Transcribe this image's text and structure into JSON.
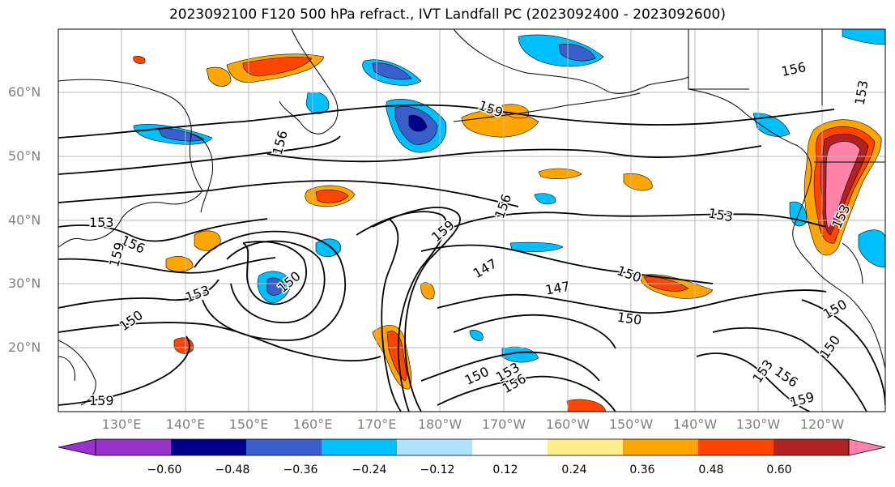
{
  "title": "2023092100 F120 500 hPa refract., IVT Landfall PC (2023092400 - 2023092600)",
  "lat_labels": [
    "60°N",
    "50°N",
    "40°N",
    "30°N",
    "20°N"
  ],
  "lon_labels": [
    "130°E",
    "140°E",
    "150°E",
    "160°E",
    "170°E",
    "180°W",
    "170°W",
    "160°W",
    "150°W",
    "140°W",
    "130°W",
    "120°W"
  ],
  "contour_labels": [
    "156",
    "159",
    "156",
    "153",
    "156",
    "159",
    "153",
    "156",
    "159",
    "150",
    "153",
    "150",
    "147",
    "153",
    "150",
    "147",
    "150",
    "153",
    "156",
    "150",
    "150",
    "153",
    "156",
    "159",
    "159",
    "153",
    "150"
  ],
  "colorbar": {
    "ticks": [
      "−0.60",
      "−0.48",
      "−0.36",
      "−0.24",
      "−0.12",
      "0.12",
      "0.24",
      "0.36",
      "0.48",
      "0.60"
    ],
    "colors": [
      "#9932CC",
      "#00008B",
      "#3A5FCD",
      "#00BFFF",
      "#B0E2FF",
      "#FFFFFF",
      "#FFEC8B",
      "#FFA500",
      "#FF4500",
      "#B22222",
      "#FF82AB",
      "#FF82AB"
    ]
  }
}
